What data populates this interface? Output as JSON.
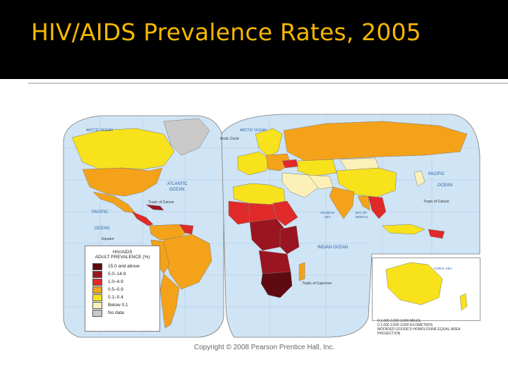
{
  "slide": {
    "title": "HIV/AIDS Prevalence Rates, 2005",
    "copyright": "Copyright © 2008 Pearson Prentice Hall, Inc."
  },
  "map": {
    "legend": {
      "title_line1": "HIV/AIDS",
      "title_line2": "ADULT PREVALENCE (%)",
      "items": [
        {
          "label": "15.0 and above",
          "color": "#5e0a10"
        },
        {
          "label": "5.0–14.9",
          "color": "#9b1520"
        },
        {
          "label": "1.0–4.9",
          "color": "#e02a2a"
        },
        {
          "label": "0.5–0.9",
          "color": "#f4a21a"
        },
        {
          "label": "0.1–0.4",
          "color": "#f7e21c"
        },
        {
          "label": "Below 0.1",
          "color": "#fbf1b8"
        },
        {
          "label": "No data",
          "color": "#c9c9c9"
        }
      ]
    },
    "labels": {
      "arctic_ocean_left": "ARCTIC OCEAN",
      "arctic_ocean_right": "ARCTIC OCEAN",
      "arctic_circle": "Arctic Circle",
      "atlantic_ocean_1": "ATLANTIC",
      "atlantic_ocean_2": "OCEAN",
      "pacific_ocean_left_1": "PACIFIC",
      "pacific_ocean_left_2": "OCEAN",
      "pacific_ocean_right_1": "PACIFIC",
      "pacific_ocean_right_2": "OCEAN",
      "indian_ocean": "INDIAN OCEAN",
      "tropic_cancer_left": "Tropic of Cancer",
      "tropic_cancer_right": "Tropic of Cancer",
      "tropic_capricorn": "Tropic of Capricorn",
      "equator": "Equator",
      "arabian_sea_1": "ARABIAN",
      "arabian_sea_2": "SEA",
      "bay_bengal_1": "BAY OF",
      "bay_bengal_2": "BENGAL",
      "coral_sea": "CORAL SEA"
    },
    "scale": {
      "miles": "0      1,000     2,000     3,000 MILES",
      "km": "0   1,000   2,000   3,000 KILOMETERS",
      "projection": "MODIFIED GOODE'S HOMOLOSINE EQUAL-AREA PROJECTION"
    },
    "colors": {
      "ocean": "#cfe4f5",
      "border": "#7a7a7a",
      "title": "#f5b800"
    }
  }
}
